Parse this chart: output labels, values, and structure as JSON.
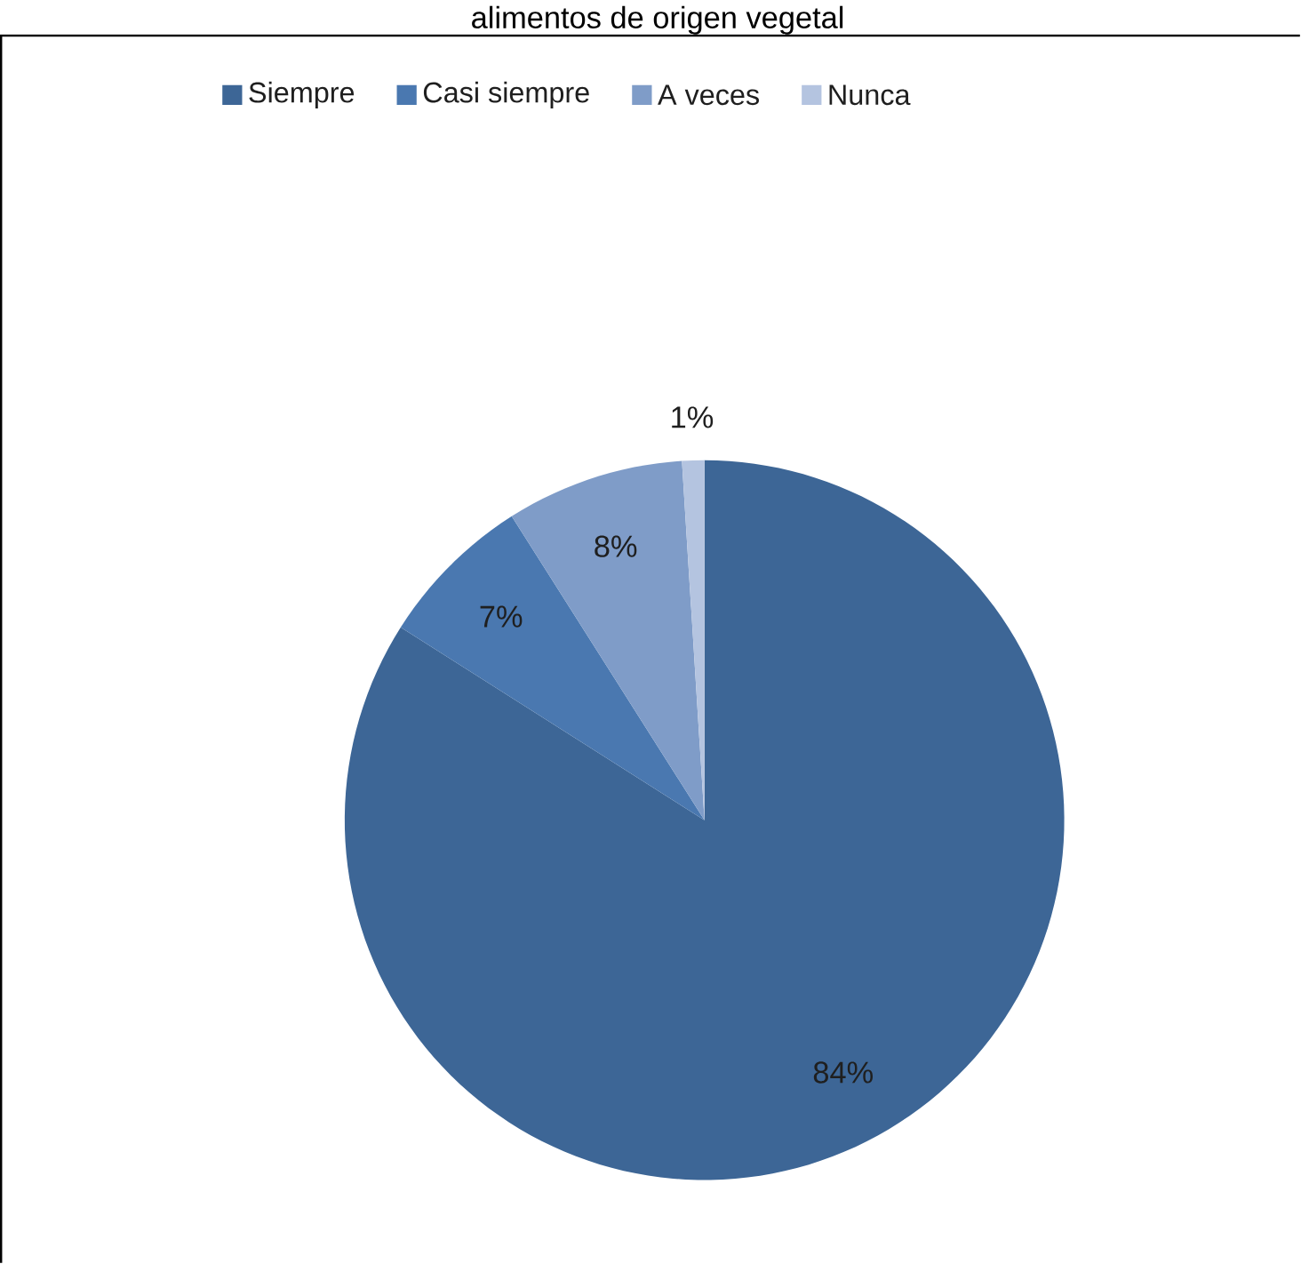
{
  "chart_data": {
    "type": "pie",
    "title": "alimentos de origen vegetal",
    "categories": [
      "Siempre",
      "Casi siempre",
      "A veces",
      "Nunca"
    ],
    "values": [
      84,
      7,
      8,
      1
    ],
    "colors": [
      "#3d6696",
      "#4a78b0",
      "#7f9cc8",
      "#b4c4e0"
    ],
    "value_labels": [
      "84%",
      "7%",
      "8%",
      "1%"
    ],
    "legend": "top"
  }
}
